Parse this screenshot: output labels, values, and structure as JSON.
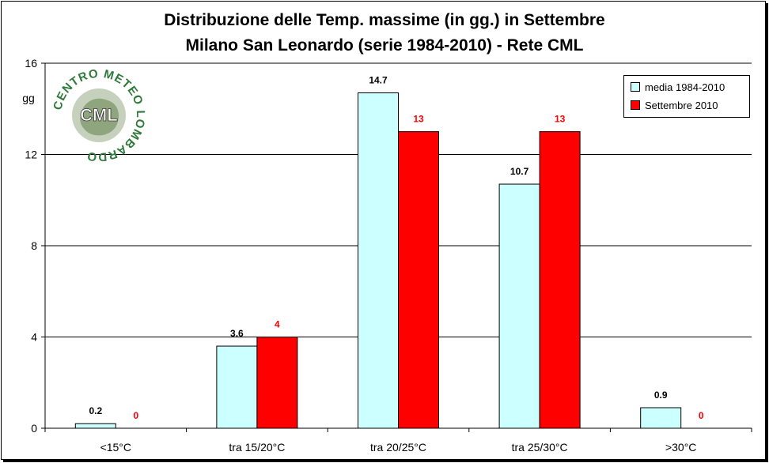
{
  "chart_data": {
    "type": "bar",
    "title": "Distribuzione delle Temp. massime (in gg.) in Settembre",
    "subtitle": "Milano San Leonardo (serie 1984-2010) - Rete CML",
    "ylabel": "gg",
    "xlabel": "",
    "ylim": [
      0,
      16
    ],
    "yticks": [
      0,
      4,
      8,
      12,
      16
    ],
    "grid": true,
    "legend_position": "top-right",
    "categories": [
      "<15°C",
      "tra 15/20°C",
      "tra 20/25°C",
      "tra 25/30°C",
      ">30°C"
    ],
    "series": [
      {
        "name": "media 1984-2010",
        "values": [
          0.2,
          3.6,
          14.7,
          10.7,
          0.9
        ],
        "labels": [
          "0.2",
          "3.6",
          "14.7",
          "10.7",
          "0.9"
        ],
        "color": "#ccffff",
        "label_color": "#000000"
      },
      {
        "name": "Settembre 2010",
        "values": [
          0,
          4,
          13,
          13,
          0
        ],
        "labels": [
          "0",
          "4",
          "13",
          "13",
          "0"
        ],
        "color": "#ff0000",
        "label_color": "#ff0000"
      }
    ]
  },
  "logo": {
    "text_ring": "CENTRO METEO LOMBARDO",
    "center": "CML"
  }
}
